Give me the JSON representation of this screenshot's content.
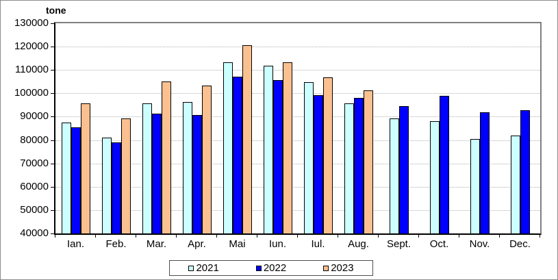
{
  "chart_data": {
    "type": "bar",
    "unit_label": "tone",
    "categories": [
      "Ian.",
      "Feb.",
      "Mar.",
      "Apr.",
      "Mai",
      "Iun.",
      "Iul.",
      "Aug.",
      "Sept.",
      "Oct.",
      "Nov.",
      "Dec."
    ],
    "series": [
      {
        "name": "2021",
        "color": "#CCFFFF",
        "values": [
          87600,
          81000,
          95700,
          96300,
          113400,
          111900,
          104800,
          95700,
          89300,
          88100,
          80600,
          82000
        ]
      },
      {
        "name": "2022",
        "color": "#0000FF",
        "values": [
          85500,
          79100,
          91200,
          90800,
          107000,
          105700,
          99300,
          97900,
          94600,
          99000,
          91900,
          92800
        ]
      },
      {
        "name": "2023",
        "color": "#FAC090",
        "values": [
          95600,
          89200,
          105200,
          103300,
          120500,
          113400,
          106800,
          101400,
          null,
          null,
          null,
          null
        ]
      }
    ],
    "ylim": [
      40000,
      130000
    ],
    "ytick_step": 10000,
    "ytick_labels": [
      "130000",
      "120000",
      "110000",
      "100000",
      "90000",
      "80000",
      "70000",
      "60000",
      "50000",
      "40000"
    ],
    "grid": true,
    "legend_position": "bottom-center",
    "axis_color": "#000000",
    "frame_color": "#7f7f7f",
    "gridline_color": "#b0b0b0"
  }
}
